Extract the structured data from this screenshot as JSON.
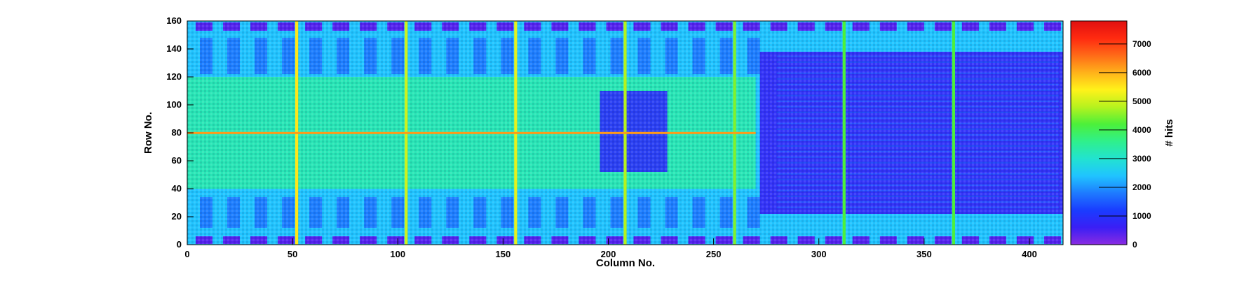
{
  "chart_data": {
    "type": "heatmap",
    "title": "",
    "xlabel": "Column No.",
    "ylabel": "Row No.",
    "zlabel": "# hits",
    "xlim": [
      0,
      416
    ],
    "ylim": [
      0,
      160
    ],
    "zlim": [
      0,
      7800
    ],
    "x_ticks": [
      0,
      50,
      100,
      150,
      200,
      250,
      300,
      350,
      400
    ],
    "y_ticks": [
      0,
      20,
      40,
      60,
      80,
      100,
      120,
      140,
      160
    ],
    "z_ticks": [
      0,
      1000,
      2000,
      3000,
      4000,
      5000,
      6000,
      7000
    ],
    "colormap": [
      "#8a2be2",
      "#3a1ff5",
      "#1a3cff",
      "#1e7bff",
      "#20c4ff",
      "#22e3d0",
      "#2ff08c",
      "#4cf03a",
      "#b6f21e",
      "#fff21a",
      "#ffb21a",
      "#ff6a18",
      "#ff2a10",
      "#e01010"
    ],
    "background_level": 2400,
    "hot_columns": [
      {
        "x": 52,
        "z": 5500
      },
      {
        "x": 104,
        "z": 5000
      },
      {
        "x": 156,
        "z": 5200
      },
      {
        "x": 208,
        "z": 4800
      },
      {
        "x": 260,
        "z": 4500
      },
      {
        "x": 312,
        "z": 4200
      },
      {
        "x": 364,
        "z": 4200
      }
    ],
    "hot_rows": [
      {
        "y": 80,
        "z": 6200
      }
    ],
    "regions": [
      {
        "label": "left-bright-field",
        "x": [
          0,
          270
        ],
        "y": [
          40,
          120
        ],
        "z": 3300
      },
      {
        "label": "right-low-block",
        "x": [
          272,
          416
        ],
        "y": [
          22,
          138
        ],
        "z": 700
      },
      {
        "label": "central-low-block",
        "x": [
          196,
          228
        ],
        "y": [
          52,
          110
        ],
        "z": 900
      }
    ]
  },
  "colors": {
    "background": "#ffffff",
    "axis": "#000000"
  }
}
